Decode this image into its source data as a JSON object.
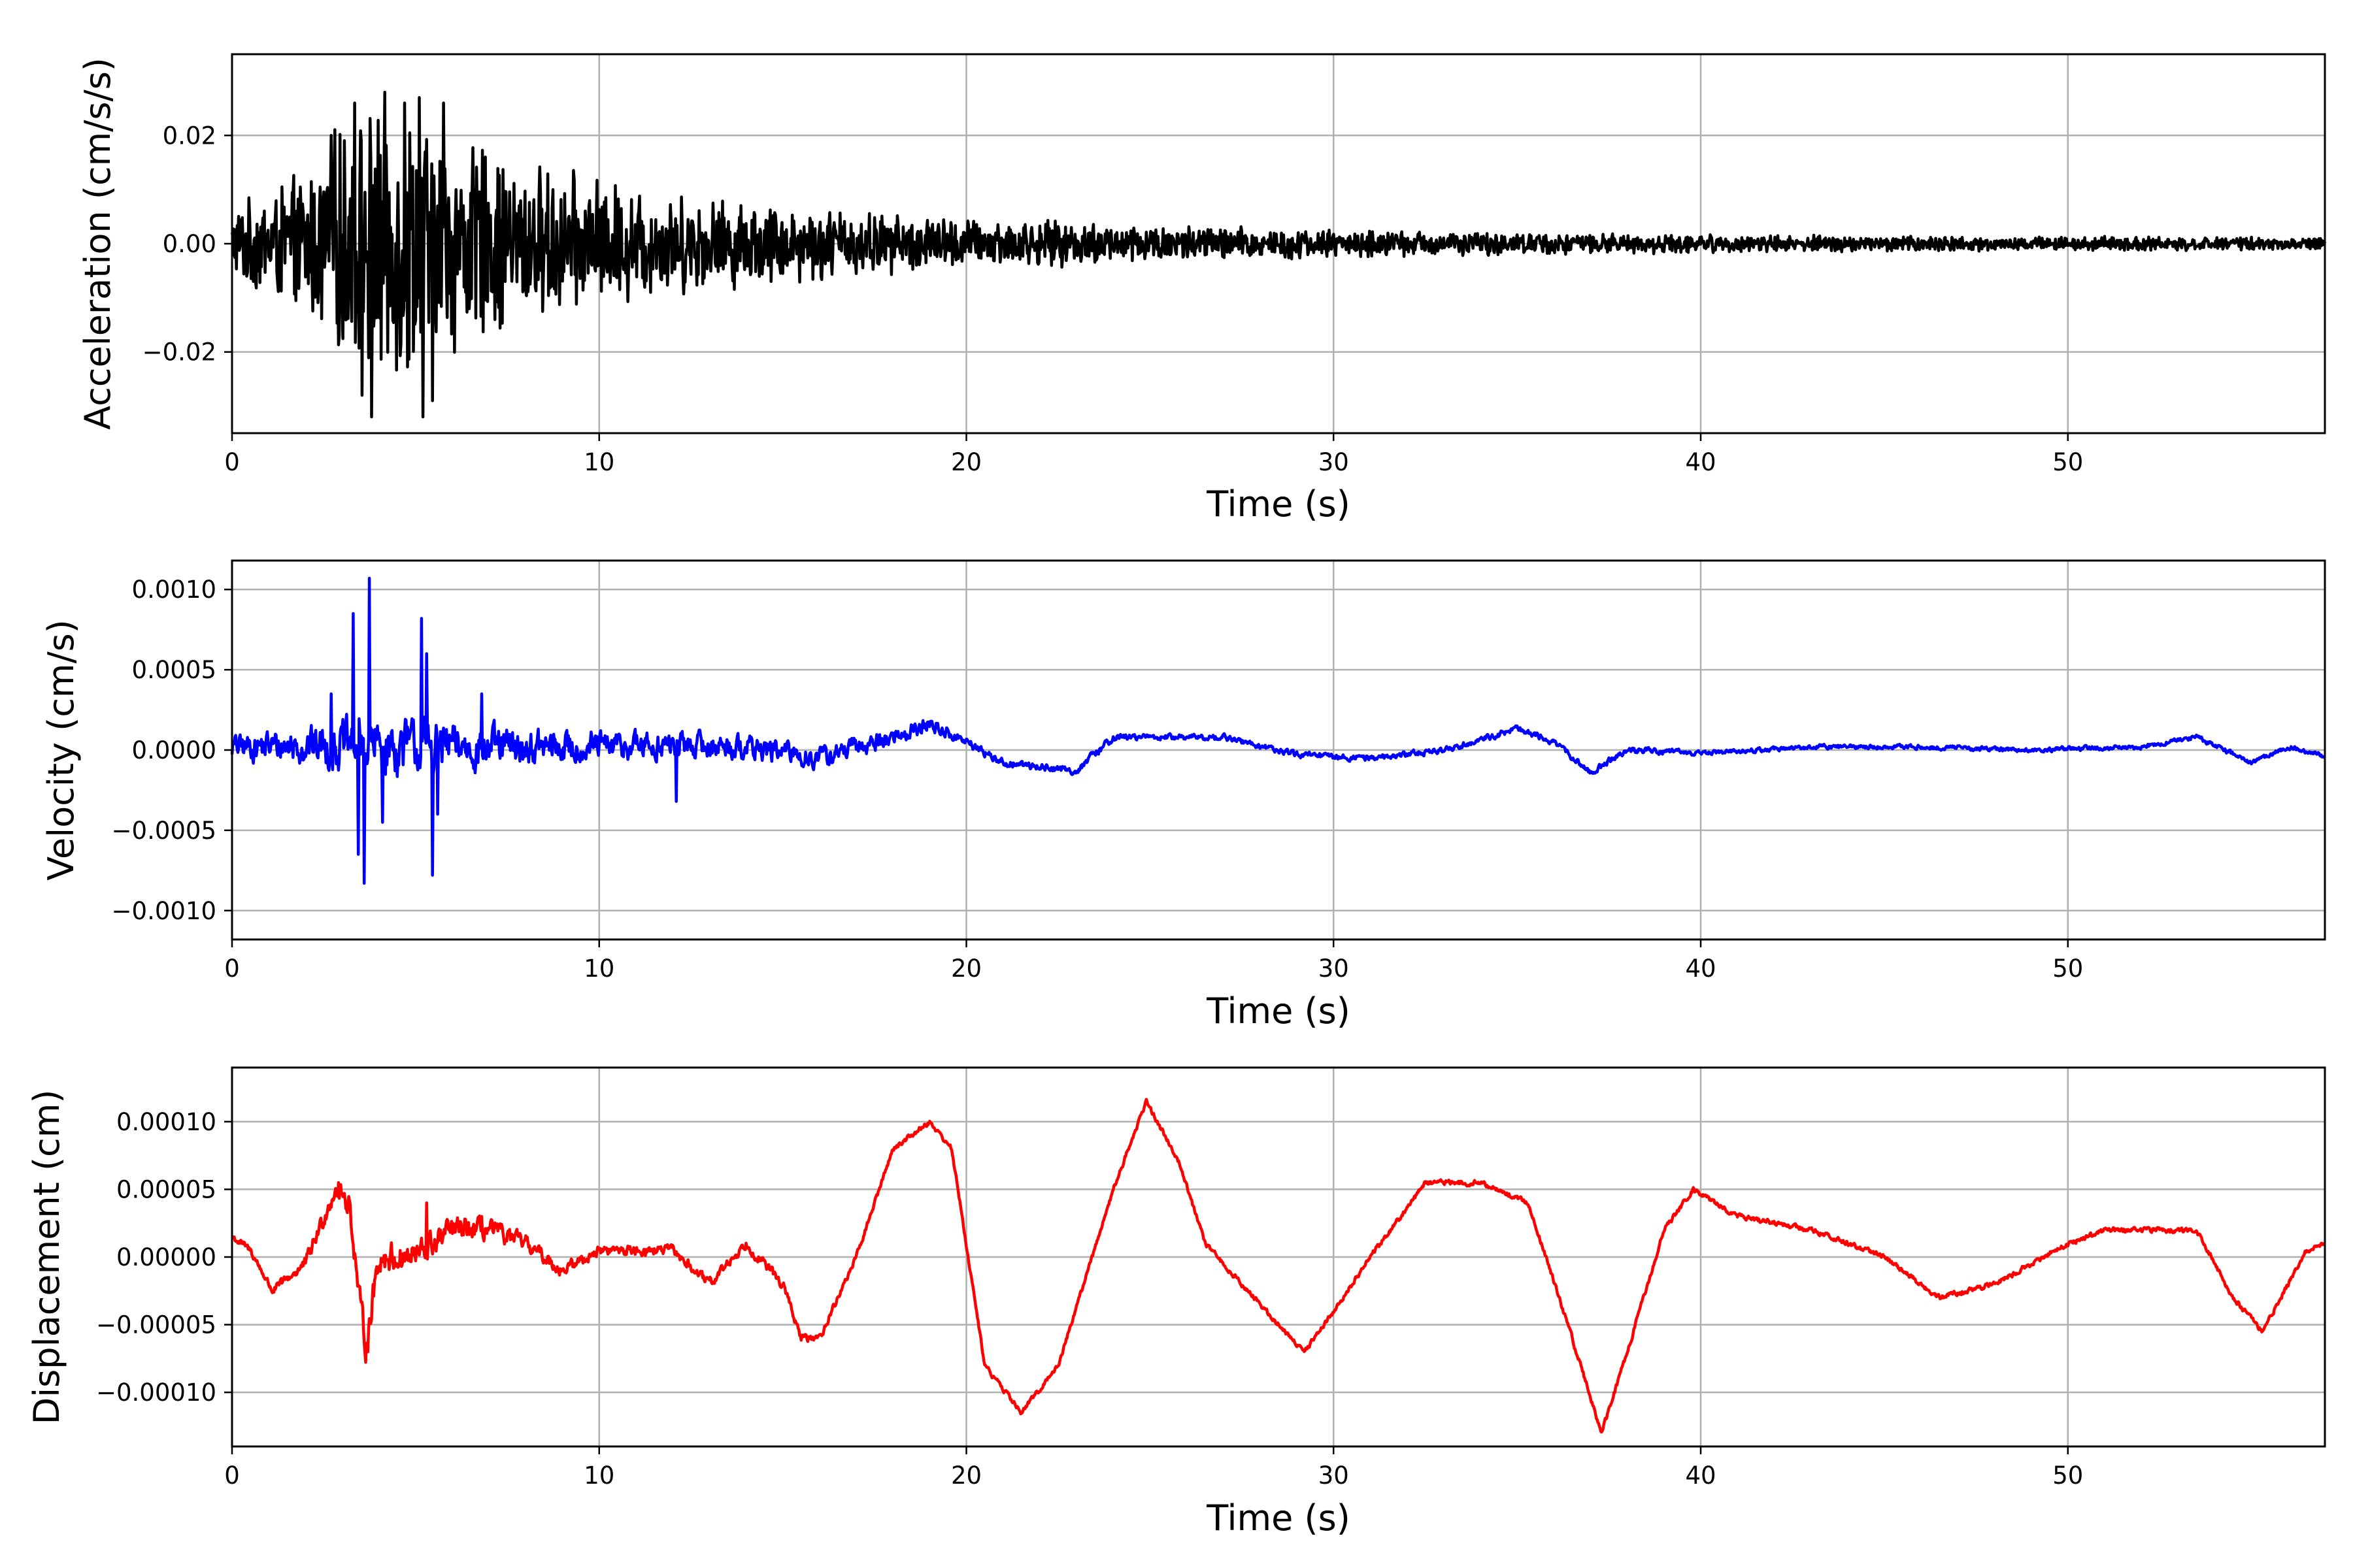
{
  "colors": {
    "acceleration": "#000000",
    "velocity": "#0000ff",
    "displacement": "#ff0000",
    "grid": "#b0b0b0",
    "frame": "#000000"
  },
  "chart_data": [
    {
      "type": "line",
      "xlabel": "Time (s)",
      "ylabel": "Acceleration (cm/s/s)",
      "xlim": [
        0,
        57
      ],
      "ylim": [
        -0.035,
        0.035
      ],
      "xticks": [
        0,
        10,
        20,
        30,
        40,
        50
      ],
      "xtick_labels": [
        "0",
        "10",
        "20",
        "30",
        "40",
        "50"
      ],
      "yticks": [
        -0.02,
        0.0,
        0.02
      ],
      "ytick_labels": [
        "−0.02",
        "0.00",
        "0.02"
      ],
      "grid": true,
      "color": "#000000",
      "signal": "noise",
      "x": [
        0,
        1,
        2,
        3,
        4,
        5,
        6,
        8,
        10,
        12,
        15,
        18,
        20,
        25,
        30,
        35,
        40,
        45,
        50,
        57
      ],
      "envelope": [
        0.007,
        0.011,
        0.014,
        0.024,
        0.028,
        0.028,
        0.022,
        0.016,
        0.013,
        0.01,
        0.008,
        0.006,
        0.005,
        0.004,
        0.0028,
        0.0022,
        0.0018,
        0.0016,
        0.0014,
        0.0012
      ],
      "peaks": [
        [
          3.35,
          0.026
        ],
        [
          3.55,
          -0.028
        ],
        [
          3.8,
          -0.032
        ],
        [
          4.7,
          0.026
        ],
        [
          5.1,
          0.027
        ],
        [
          5.2,
          -0.032
        ],
        [
          5.45,
          -0.029
        ],
        [
          5.75,
          0.026
        ],
        [
          2.7,
          0.02
        ],
        [
          6.9,
          0.016
        ]
      ]
    },
    {
      "type": "line",
      "xlabel": "Time (s)",
      "ylabel": "Velocity (cm/s)",
      "xlim": [
        0,
        57
      ],
      "ylim": [
        -0.00118,
        0.00118
      ],
      "xticks": [
        0,
        10,
        20,
        30,
        40,
        50
      ],
      "xtick_labels": [
        "0",
        "10",
        "20",
        "30",
        "40",
        "50"
      ],
      "yticks": [
        -0.001,
        -0.0005,
        0.0,
        0.0005,
        0.001
      ],
      "ytick_labels": [
        "−0.0010",
        "−0.0005",
        "0.0000",
        "0.0005",
        "0.0010"
      ],
      "grid": true,
      "color": "#0000ff",
      "signal": "trend+noise",
      "x": [
        0,
        2,
        4,
        6,
        8,
        10,
        12,
        14,
        16,
        18,
        19,
        20,
        21,
        23,
        24,
        25,
        27,
        29,
        31,
        33,
        35,
        36,
        37,
        38,
        40,
        43,
        46,
        49,
        52,
        53.5,
        55,
        56,
        57
      ],
      "y": [
        2e-05,
        3e-05,
        2e-05,
        2e-05,
        1e-05,
        2e-05,
        3e-05,
        2e-05,
        -5e-05,
        8e-05,
        0.00016,
        5e-05,
        -8e-05,
        -0.00013,
        8e-05,
        8e-05,
        8e-05,
        -3e-05,
        -5e-05,
        0.0,
        0.00013,
        5e-05,
        -0.00014,
        0.0,
        -2e-05,
        2e-05,
        2e-05,
        0.0,
        2e-05,
        8e-05,
        -8e-05,
        2e-05,
        -4e-05
      ],
      "noise": [
        8e-05,
        0.00012,
        0.0002,
        0.00015,
        0.00012,
        0.0001,
        9e-05,
        8e-05,
        7e-05,
        6e-05,
        5e-05,
        3e-05,
        2.5e-05,
        2.5e-05,
        2.5e-05,
        2e-05,
        2e-05,
        2e-05,
        2e-05,
        2e-05,
        2e-05,
        2e-05,
        2e-05,
        2e-05,
        1.5e-05,
        1.5e-05,
        1.5e-05,
        1.5e-05,
        1.5e-05,
        1.5e-05,
        1.5e-05,
        1.5e-05,
        1.5e-05
      ],
      "peaks": [
        [
          3.3,
          0.00085
        ],
        [
          3.45,
          -0.00065
        ],
        [
          3.6,
          -0.00083
        ],
        [
          3.75,
          0.00107
        ],
        [
          4.1,
          -0.00045
        ],
        [
          5.15,
          0.00082
        ],
        [
          5.3,
          0.0006
        ],
        [
          5.45,
          -0.00078
        ],
        [
          5.6,
          -0.0004
        ],
        [
          2.7,
          0.00035
        ],
        [
          6.8,
          0.00035
        ],
        [
          12.1,
          -0.00032
        ]
      ]
    },
    {
      "type": "line",
      "xlabel": "Time (s)",
      "ylabel": "Displacement (cm)",
      "xlim": [
        0,
        57
      ],
      "ylim": [
        -0.00014,
        0.00014
      ],
      "xticks": [
        0,
        10,
        20,
        30,
        40,
        50
      ],
      "xtick_labels": [
        "0",
        "10",
        "20",
        "30",
        "40",
        "50"
      ],
      "yticks": [
        -0.0001,
        -5e-05,
        0.0,
        5e-05,
        0.0001
      ],
      "ytick_labels": [
        "−0.00010",
        "−0.00005",
        "0.00000",
        "0.00005",
        "0.00010"
      ],
      "grid": true,
      "color": "#ff0000",
      "signal": "trend+noise",
      "x": [
        0,
        0.5,
        1.1,
        2.0,
        2.8,
        3.2,
        3.5,
        3.65,
        4.0,
        5.0,
        6.0,
        7.0,
        8.0,
        9.0,
        10.0,
        12.0,
        13.0,
        14.0,
        15.0,
        15.5,
        16.0,
        17.0,
        18.0,
        19.0,
        19.6,
        20.5,
        21.5,
        22.5,
        24.0,
        24.9,
        25.8,
        26.5,
        27.5,
        28.5,
        29.2,
        30.0,
        31.0,
        32.5,
        34.0,
        35.3,
        36.5,
        37.3,
        38.0,
        39.0,
        39.8,
        41.0,
        43.0,
        45.0,
        46.5,
        48.0,
        50.0,
        51.0,
        52.0,
        53.5,
        54.5,
        55.3,
        56.5,
        57.0
      ],
      "y": [
        1.5e-05,
        5e-06,
        -2.5e-05,
        -5e-06,
        5e-05,
        4e-05,
        -4e-05,
        -6.5e-05,
        0.0,
        0.0,
        2e-05,
        2e-05,
        1e-05,
        -1e-05,
        5e-06,
        5e-06,
        -2e-05,
        1e-05,
        -2e-05,
        -6e-05,
        -6e-05,
        0.0,
        8e-05,
        0.0001,
        8e-05,
        -8e-05,
        -0.000115,
        -8e-05,
        5e-05,
        0.000115,
        7e-05,
        1e-05,
        -2e-05,
        -5e-05,
        -7e-05,
        -4e-05,
        0.0,
        5.5e-05,
        5.5e-05,
        4e-05,
        -6e-05,
        -0.00013,
        -7e-05,
        2e-05,
        5e-05,
        3e-05,
        2e-05,
        0.0,
        -3e-05,
        -2e-05,
        1e-05,
        2e-05,
        2e-05,
        2e-05,
        -3e-05,
        -5.5e-05,
        5e-06,
        1e-05
      ],
      "noise": [
        3e-06,
        3e-06,
        3e-06,
        5e-06,
        8e-06,
        1e-05,
        1.2e-05,
        1.2e-05,
        1.2e-05,
        1.2e-05,
        1e-05,
        8e-06,
        6e-06,
        5e-06,
        4e-06,
        4e-06,
        4e-06,
        4e-06,
        4e-06,
        3e-06,
        3e-06,
        2e-06,
        2e-06,
        2e-06,
        2e-06,
        2e-06,
        2e-06,
        2e-06,
        2e-06,
        2e-06,
        2e-06,
        2e-06,
        2e-06,
        2e-06,
        2e-06,
        2e-06,
        2e-06,
        2e-06,
        2e-06,
        2e-06,
        2e-06,
        2e-06,
        2e-06,
        2e-06,
        2e-06,
        2e-06,
        2e-06,
        2e-06,
        2e-06,
        2e-06,
        2e-06,
        2e-06,
        2e-06,
        2e-06,
        2e-06,
        2e-06,
        2e-06,
        2e-06
      ],
      "peaks": [
        [
          3.7,
          -7e-05
        ],
        [
          5.3,
          4e-05
        ],
        [
          6.8,
          3e-05
        ],
        [
          2.9,
          5.5e-05
        ]
      ]
    }
  ]
}
